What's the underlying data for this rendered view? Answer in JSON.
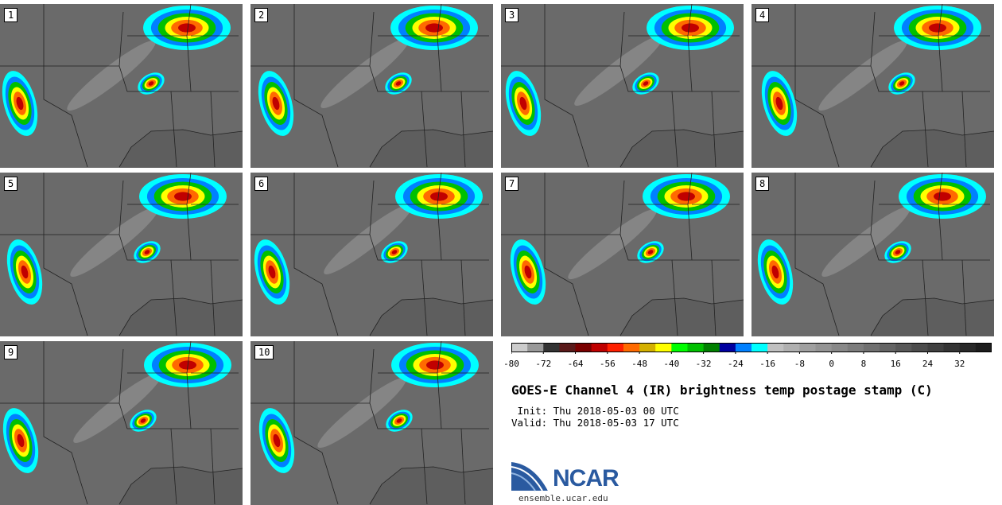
{
  "panels": [
    {
      "label": "1"
    },
    {
      "label": "2"
    },
    {
      "label": "3"
    },
    {
      "label": "4"
    },
    {
      "label": "5"
    },
    {
      "label": "6"
    },
    {
      "label": "7"
    },
    {
      "label": "8"
    },
    {
      "label": "9"
    },
    {
      "label": "10"
    }
  ],
  "colorbar": {
    "colors": [
      "#cccccc",
      "#999999",
      "#333333",
      "#5a1a1a",
      "#7a0000",
      "#c00000",
      "#ff2000",
      "#ff6a00",
      "#d4b000",
      "#ffff00",
      "#00ff00",
      "#00c000",
      "#008000",
      "#0000a0",
      "#0080ff",
      "#00ffff",
      "#c0c0c0",
      "#b0b0b0",
      "#a0a0a0",
      "#949494",
      "#888888",
      "#7c7c7c",
      "#707070",
      "#646464",
      "#585858",
      "#4c4c4c",
      "#404040",
      "#343434",
      "#282828",
      "#1c1c1c"
    ],
    "min": -80,
    "step": 4,
    "tick_labels": [
      "-80",
      "-72",
      "-64",
      "-56",
      "-48",
      "-40",
      "-32",
      "-24",
      "-16",
      "-8",
      "0",
      "8",
      "16",
      "24",
      "32"
    ]
  },
  "title": "GOES-E Channel 4 (IR) brightness temp postage stamp (C)",
  "init_text": " Init: Thu 2018-05-03 00 UTC",
  "valid_text": "Valid: Thu 2018-05-03 17 UTC",
  "logo_text": "NCAR",
  "site_text": "ensemble.ucar.edu"
}
